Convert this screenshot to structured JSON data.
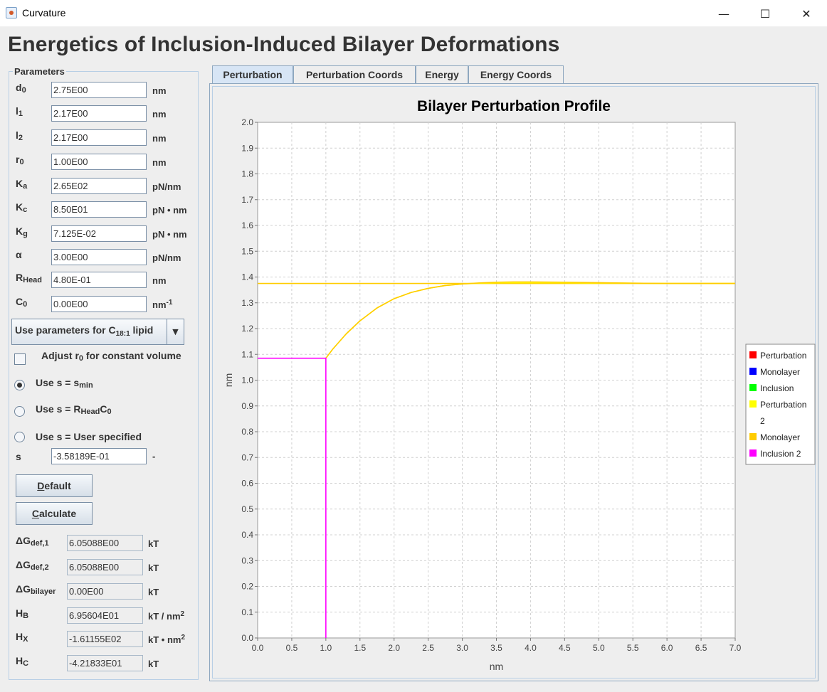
{
  "window": {
    "title": "Curvature",
    "minimize_glyph": "—",
    "maximize_glyph": "☐",
    "close_glyph": "✕"
  },
  "app_title": "Energetics of Inclusion-Induced Bilayer Deformations",
  "parameters": {
    "legend": "Parameters",
    "rows": [
      {
        "sym": "d",
        "sub": "0",
        "value": "2.75E00",
        "unit": "nm"
      },
      {
        "sym": "l",
        "sub": "1",
        "value": "2.17E00",
        "unit": "nm"
      },
      {
        "sym": "l",
        "sub": "2",
        "value": "2.17E00",
        "unit": "nm"
      },
      {
        "sym": "r",
        "sub": "0",
        "value": "1.00E00",
        "unit": "nm"
      },
      {
        "sym": "K",
        "sub": "a",
        "value": "2.65E02",
        "unit": "pN/nm"
      },
      {
        "sym": "K",
        "sub": "c",
        "value": "8.50E01",
        "unit": "pN • nm"
      },
      {
        "sym": "K",
        "sub": "g",
        "value": "7.125E-02",
        "unit": "pN • nm"
      },
      {
        "sym": "α",
        "sub": "",
        "value": "3.00E00",
        "unit": "pN/nm"
      },
      {
        "sym": "R",
        "sub": "Head",
        "value": "4.80E-01",
        "unit": "nm"
      },
      {
        "sym": "C",
        "sub": "0",
        "value": "0.00E00",
        "unit": "nm",
        "unit_sup": "-1"
      }
    ],
    "lipid_combo": {
      "prefix": "Use parameters for C",
      "sub": "18:1",
      "suffix": " lipid",
      "arrow": "▼"
    },
    "adjust_checkbox": {
      "pre": "Adjust r",
      "sub": "0",
      "post": " for constant volume",
      "checked": false
    },
    "s_options": [
      {
        "pre": "Use s = s",
        "sub": "min",
        "post": "",
        "selected": true
      },
      {
        "pre": "Use s = R",
        "sub": "Head",
        "post": "C",
        "sub2": "0",
        "selected": false
      },
      {
        "pre": "Use s = User specified",
        "sub": "",
        "post": "",
        "selected": false
      }
    ],
    "s_field": {
      "label": "s",
      "value": "-3.58189E-01",
      "unit": "-"
    },
    "default_button": {
      "mnemonic": "D",
      "rest": "efault"
    },
    "calculate_button": {
      "mnemonic": "C",
      "rest": "alculate"
    },
    "results": [
      {
        "sym": "ΔG",
        "sub": "def,1",
        "value": "6.05088E00",
        "unit": "kT",
        "unit_sup": ""
      },
      {
        "sym": "ΔG",
        "sub": "def,2",
        "value": "6.05088E00",
        "unit": "kT",
        "unit_sup": ""
      },
      {
        "sym": "ΔG",
        "sub": "bilayer",
        "value": "0.00E00",
        "unit": "kT",
        "unit_sup": ""
      },
      {
        "sym": "H",
        "sub": "B",
        "value": "6.95604E01",
        "unit": "kT / nm",
        "unit_sup": "2"
      },
      {
        "sym": "H",
        "sub": "X",
        "value": "-1.61155E02",
        "unit": "kT • nm",
        "unit_sup": "2"
      },
      {
        "sym": "H",
        "sub": "C",
        "value": "-4.21833E01",
        "unit": "kT",
        "unit_sup": ""
      }
    ]
  },
  "tabs": [
    {
      "label": "Perturbation",
      "active": true
    },
    {
      "label": "Perturbation Coords",
      "active": false
    },
    {
      "label": "Energy",
      "active": false
    },
    {
      "label": "Energy Coords",
      "active": false
    }
  ],
  "chart_data": {
    "type": "line",
    "title": "Bilayer Perturbation Profile",
    "xlabel": "nm",
    "ylabel": "nm",
    "xlim": [
      0.0,
      7.0
    ],
    "ylim": [
      0.0,
      2.0
    ],
    "x_ticks": [
      "0.0",
      "0.5",
      "1.0",
      "1.5",
      "2.0",
      "2.5",
      "3.0",
      "3.5",
      "4.0",
      "4.5",
      "5.0",
      "5.5",
      "6.0",
      "6.5",
      "7.0"
    ],
    "y_ticks": [
      "0.0",
      "0.1",
      "0.2",
      "0.3",
      "0.4",
      "0.5",
      "0.6",
      "0.7",
      "0.8",
      "0.9",
      "1.0",
      "1.1",
      "1.2",
      "1.3",
      "1.4",
      "1.5",
      "1.6",
      "1.7",
      "1.8",
      "1.9",
      "2.0"
    ],
    "grid": true,
    "legend_position": "right",
    "legend": [
      {
        "name": "Perturbation",
        "color": "#ff0000"
      },
      {
        "name": "Monolayer",
        "color": "#0000ff"
      },
      {
        "name": "Inclusion",
        "color": "#00ff00"
      },
      {
        "name": "Perturbation 2",
        "color": "#ffff00"
      },
      {
        "name": "Monolayer",
        "color": "#ffcc00"
      },
      {
        "name": "Inclusion 2",
        "color": "#ff00ff"
      }
    ],
    "series": [
      {
        "name": "Monolayer",
        "color": "#ffcc00",
        "x": [
          0.0,
          7.0
        ],
        "y": [
          1.375,
          1.375
        ]
      },
      {
        "name": "Perturbation 2",
        "color": "#ffff00",
        "x": [
          1.0,
          1.1,
          1.3,
          1.5,
          1.75,
          2.0,
          2.25,
          2.5,
          2.75,
          3.0,
          3.25,
          3.5,
          3.75,
          4.0,
          4.5,
          5.0,
          5.5,
          6.0,
          6.5,
          7.0
        ],
        "y": [
          1.085,
          1.12,
          1.18,
          1.23,
          1.28,
          1.316,
          1.34,
          1.356,
          1.367,
          1.373,
          1.376,
          1.378,
          1.378,
          1.378,
          1.378,
          1.377,
          1.376,
          1.375,
          1.375,
          1.375
        ]
      },
      {
        "name": "Monolayer",
        "color": "#ffcc00",
        "x": [
          1.0,
          1.1,
          1.3,
          1.5,
          1.75,
          2.0,
          2.25,
          2.5,
          2.75,
          3.0,
          3.25,
          3.5,
          3.75,
          4.0,
          4.5,
          5.0,
          5.5,
          6.0,
          6.5,
          7.0
        ],
        "y": [
          1.085,
          1.12,
          1.18,
          1.23,
          1.28,
          1.316,
          1.34,
          1.356,
          1.367,
          1.373,
          1.377,
          1.38,
          1.381,
          1.381,
          1.38,
          1.378,
          1.376,
          1.375,
          1.375,
          1.375
        ]
      },
      {
        "name": "Inclusion 2",
        "color": "#ff00ff",
        "x": [
          0.0,
          1.0,
          1.0
        ],
        "y": [
          1.085,
          1.085,
          0.0
        ]
      }
    ]
  }
}
